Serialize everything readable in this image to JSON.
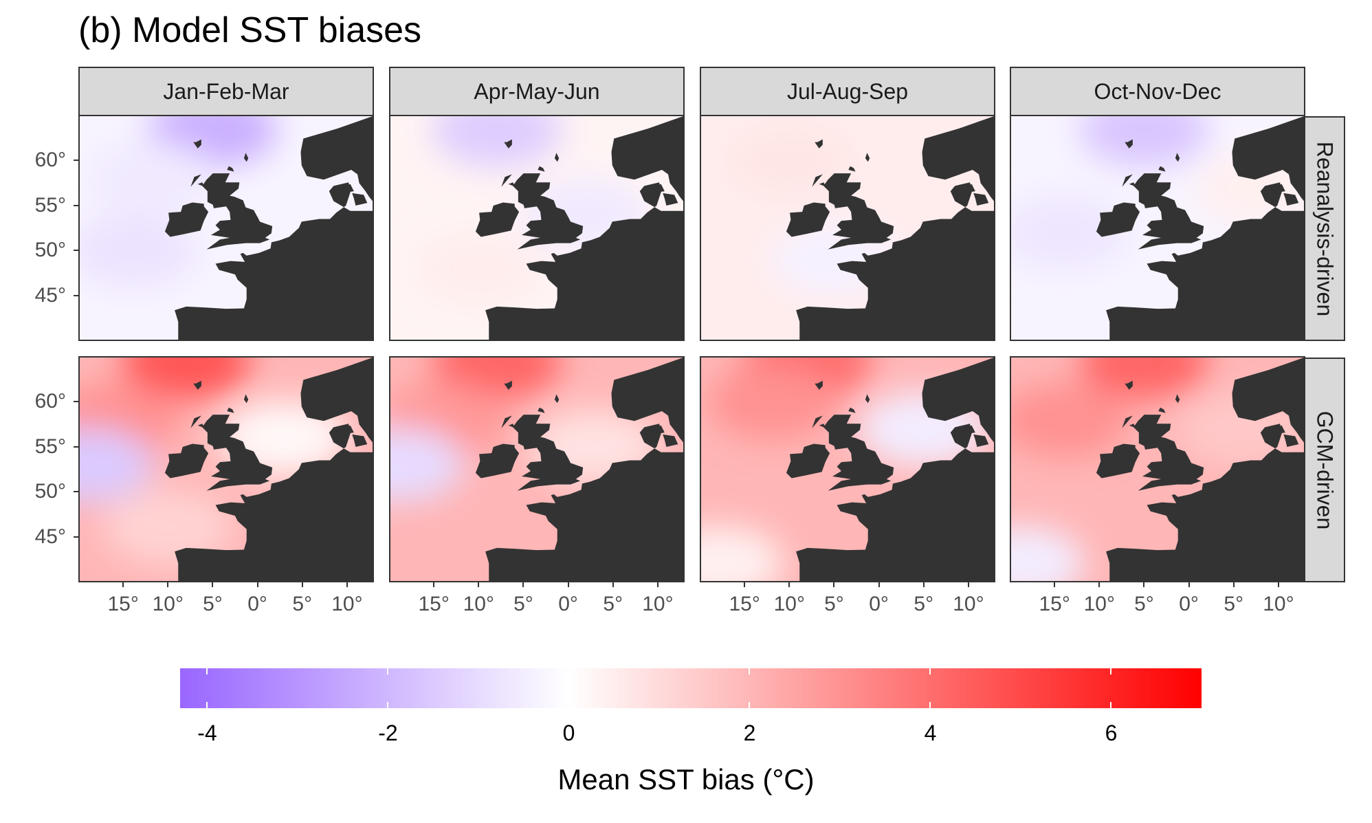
{
  "title": "(b) Model SST biases",
  "columns": [
    "Jan-Feb-Mar",
    "Apr-May-Jun",
    "Jul-Aug-Sep",
    "Oct-Nov-Dec"
  ],
  "rows": [
    "Reanalysis-driven",
    "GCM-driven"
  ],
  "map_extent": {
    "lon": [
      -20,
      13
    ],
    "lat": [
      40,
      65
    ]
  },
  "y_ticks": [
    {
      "label": "60°",
      "lat": 60
    },
    {
      "label": "55°",
      "lat": 55
    },
    {
      "label": "50°",
      "lat": 50
    },
    {
      "label": "45°",
      "lat": 45
    }
  ],
  "x_ticks": [
    {
      "label": "15°",
      "lon": -15
    },
    {
      "label": "10°",
      "lon": -10
    },
    {
      "label": "5°",
      "lon": -5
    },
    {
      "label": "0°",
      "lon": 0
    },
    {
      "label": "5°",
      "lon": 5
    },
    {
      "label": "10°",
      "lon": 10
    }
  ],
  "colorbar": {
    "title": "Mean SST bias (°C)",
    "range": [
      -4.3,
      7
    ],
    "low_color": "#9966ff",
    "mid_color": "#ffffff",
    "high_color": "#ff0000",
    "ticks": [
      "-4",
      "-2",
      "0",
      "2",
      "4",
      "6"
    ]
  },
  "land_color": "#333333",
  "chart_data": {
    "type": "heatmap",
    "description_of_fields": "approximate mean seasonal SST bias (°C) by region",
    "panels": [
      {
        "row": "Reanalysis-driven",
        "column": "Jan-Feb-Mar",
        "background_bias": -0.3,
        "regions": [
          {
            "lon": -5,
            "lat": 63.5,
            "bias": -2.2
          },
          {
            "lon": -14,
            "lat": 50,
            "bias": -0.8
          },
          {
            "lon": -12,
            "lat": 58,
            "bias": -0.6
          }
        ]
      },
      {
        "row": "Reanalysis-driven",
        "column": "Apr-May-Jun",
        "background_bias": 0.3,
        "regions": [
          {
            "lon": -8,
            "lat": 63.5,
            "bias": -1.4
          },
          {
            "lon": 2,
            "lat": 54,
            "bias": -0.6
          },
          {
            "lon": -10,
            "lat": 48,
            "bias": 0.5
          }
        ]
      },
      {
        "row": "Reanalysis-driven",
        "column": "Jul-Aug-Sep",
        "background_bias": 0.5,
        "regions": [
          {
            "lon": -10,
            "lat": 60,
            "bias": 0.7
          },
          {
            "lon": -5,
            "lat": 49,
            "bias": -0.4
          }
        ]
      },
      {
        "row": "Reanalysis-driven",
        "column": "Oct-Nov-Dec",
        "background_bias": -0.3,
        "regions": [
          {
            "lon": -5,
            "lat": 63.5,
            "bias": -1.6
          },
          {
            "lon": -14,
            "lat": 52,
            "bias": -0.7
          },
          {
            "lon": 8,
            "lat": 57,
            "bias": 0.4
          }
        ]
      },
      {
        "row": "GCM-driven",
        "column": "Jan-Feb-Mar",
        "background_bias": 2.0,
        "regions": [
          {
            "lon": -8,
            "lat": 64.5,
            "bias": 4.6
          },
          {
            "lon": -16,
            "lat": 58,
            "bias": 3.0
          },
          {
            "lon": -19,
            "lat": 53,
            "bias": -1.5
          },
          {
            "lon": 3,
            "lat": 56,
            "bias": 0.2
          },
          {
            "lon": -10,
            "lat": 46,
            "bias": 1.2
          }
        ]
      },
      {
        "row": "GCM-driven",
        "column": "Apr-May-Jun",
        "background_bias": 2.0,
        "regions": [
          {
            "lon": -8,
            "lat": 64.5,
            "bias": 4.2
          },
          {
            "lon": -14,
            "lat": 58,
            "bias": 2.8
          },
          {
            "lon": -19,
            "lat": 53,
            "bias": -1.0
          },
          {
            "lon": 3,
            "lat": 55,
            "bias": 0.8
          }
        ]
      },
      {
        "row": "GCM-driven",
        "column": "Jul-Aug-Sep",
        "background_bias": 2.0,
        "regions": [
          {
            "lon": -8,
            "lat": 64.5,
            "bias": 4.0
          },
          {
            "lon": -12,
            "lat": 60,
            "bias": 3.0
          },
          {
            "lon": 5,
            "lat": 57,
            "bias": -0.5
          },
          {
            "lon": -18,
            "lat": 42,
            "bias": 0.4
          }
        ]
      },
      {
        "row": "GCM-driven",
        "column": "Oct-Nov-Dec",
        "background_bias": 2.0,
        "regions": [
          {
            "lon": -5,
            "lat": 64.5,
            "bias": 4.2
          },
          {
            "lon": -14,
            "lat": 58,
            "bias": 3.0
          },
          {
            "lon": -19,
            "lat": 42,
            "bias": -0.5
          },
          {
            "lon": 6,
            "lat": 57,
            "bias": 1.5
          }
        ]
      }
    ]
  }
}
